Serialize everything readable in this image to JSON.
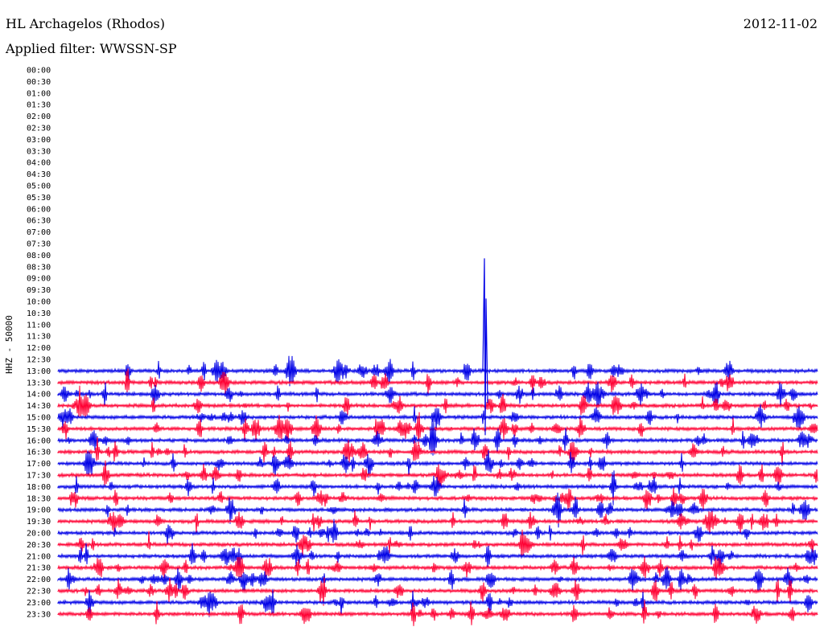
{
  "header": {
    "station": "HL Archagelos (Rhodos)",
    "filter": "Applied filter: WWSSN-SP",
    "date": "2012-11-02"
  },
  "chart_data": {
    "type": "line",
    "title": "HL Archagelos (Rhodos)",
    "ylabel": "HHZ - 50000",
    "ticks": [
      "00:00",
      "00:30",
      "01:00",
      "01:30",
      "02:00",
      "02:30",
      "03:00",
      "03:30",
      "04:00",
      "04:30",
      "05:00",
      "05:30",
      "06:00",
      "06:30",
      "07:00",
      "07:30",
      "08:00",
      "08:30",
      "09:00",
      "09:30",
      "10:00",
      "10:30",
      "11:00",
      "11:30",
      "12:00",
      "12:30",
      "13:00",
      "13:30",
      "14:00",
      "14:30",
      "15:00",
      "15:30",
      "16:00",
      "16:30",
      "17:00",
      "17:30",
      "18:00",
      "18:30",
      "19:00",
      "19:30",
      "20:00",
      "20:30",
      "21:00",
      "21:30",
      "22:00",
      "22:30",
      "23:00",
      "23:30"
    ],
    "first_trace_index": 26,
    "colors": {
      "blue": "#0000e6",
      "red": "#ff0033"
    },
    "color_order": [
      "blue",
      "red"
    ]
  }
}
